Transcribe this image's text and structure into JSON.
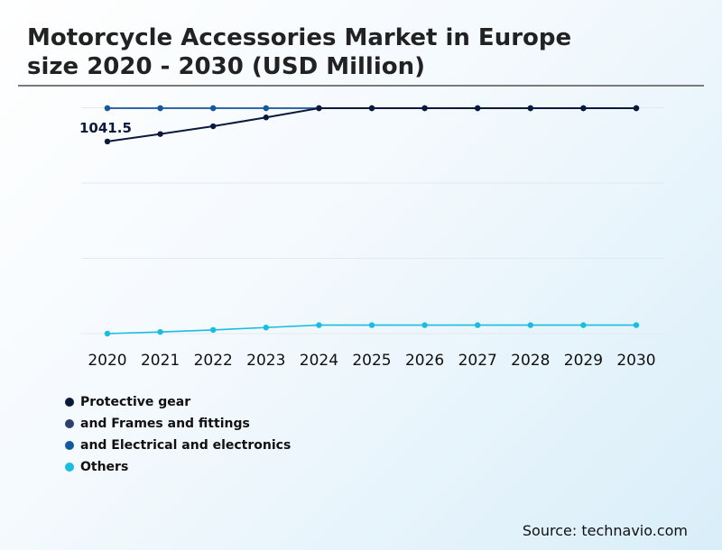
{
  "title_line1": "Motorcycle Accessories Market in Europe",
  "title_line2": "size 2020 - 2030 (USD Million)",
  "source": "Source: technavio.com",
  "chart_data": {
    "type": "line",
    "categories": [
      "2020",
      "2021",
      "2022",
      "2023",
      "2024",
      "2025",
      "2026",
      "2027",
      "2028",
      "2029",
      "2030"
    ],
    "ylim": [
      0,
      1300
    ],
    "series": [
      {
        "name": "Protective gear",
        "color": "#0b1a3c",
        "values": [
          1041.5,
          1082,
          1124,
          1172,
          1222,
          1222,
          1222,
          1222,
          1222,
          1222,
          1222
        ]
      },
      {
        "name": "and Frames and fittings",
        "color": "#2e3f6e",
        "values": [
          1222,
          1222,
          1222,
          1222,
          1222,
          1222,
          1222,
          1222,
          1222,
          1222,
          1222
        ]
      },
      {
        "name": "and Electrical and electronics",
        "color": "#1358a0",
        "values": [
          1222,
          1222,
          1222,
          1222,
          1222,
          1222,
          1222,
          1222,
          1222,
          1222,
          1222
        ]
      },
      {
        "name": "Others",
        "color": "#18bde0",
        "values": [
          0,
          9,
          20,
          33,
          46,
          46,
          46,
          46,
          46,
          46,
          46
        ]
      }
    ],
    "annotations": [
      {
        "series": 0,
        "index": 0,
        "label": "1041.5"
      }
    ],
    "grid": true,
    "legend_position": "bottom-left"
  }
}
